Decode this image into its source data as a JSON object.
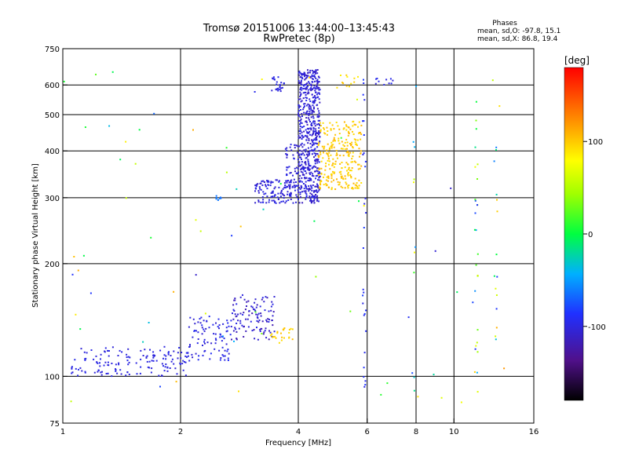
{
  "chart_data": {
    "type": "scatter",
    "title": "Tromsø 20151006 13:44:00–13:45:43",
    "subtitle": "RwPretec (8p)",
    "phases_header": "Phases",
    "phase_stats": [
      "mean, sd,O:  -97.8, 15.1",
      "mean, sd,X:  86.8, 19.4"
    ],
    "xlabel": "Frequency [MHz]",
    "ylabel": "Stationary phase Virtual Height [km]",
    "xscale": "log",
    "yscale": "log",
    "xlim": [
      1,
      16
    ],
    "ylim": [
      75,
      750
    ],
    "x_ticks": [
      1,
      2,
      4,
      6,
      8,
      10,
      16
    ],
    "x_tick_labels": [
      "1",
      "2",
      "4",
      "6",
      "8",
      "10",
      "16"
    ],
    "y_ticks": [
      75,
      100,
      200,
      300,
      400,
      500,
      600,
      750
    ],
    "y_tick_labels": [
      "75",
      "100",
      "200",
      "300",
      "400",
      "500",
      "600",
      "750"
    ],
    "grid": true,
    "colorbar": {
      "label": "[deg]",
      "range": [
        -180,
        180
      ],
      "ticks": [
        -100,
        0,
        100
      ],
      "tick_labels": [
        "-100",
        "0",
        "100"
      ]
    },
    "clusters": [
      {
        "x": [
          1.05,
          2.1
        ],
        "y": [
          100,
          120
        ],
        "c": [
          -105,
          -95
        ],
        "n": 150
      },
      {
        "x": [
          2.1,
          2.7
        ],
        "y": [
          110,
          145
        ],
        "c": [
          -110,
          -90
        ],
        "n": 90
      },
      {
        "x": [
          2.7,
          3.5
        ],
        "y": [
          125,
          165
        ],
        "c": [
          -120,
          -95
        ],
        "n": 110
      },
      {
        "x": [
          3.4,
          3.9
        ],
        "y": [
          122,
          135
        ],
        "c": [
          90,
          105
        ],
        "n": 25
      },
      {
        "x": [
          3.1,
          4.0
        ],
        "y": [
          290,
          335
        ],
        "c": [
          -110,
          -95
        ],
        "n": 130
      },
      {
        "x": [
          3.7,
          4.0
        ],
        "y": [
          320,
          420
        ],
        "c": [
          -110,
          -95
        ],
        "n": 50
      },
      {
        "x": [
          4.0,
          4.55
        ],
        "y": [
          290,
          660
        ],
        "c": [
          -115,
          -95
        ],
        "n": 600
      },
      {
        "x": [
          3.4,
          3.7
        ],
        "y": [
          570,
          630
        ],
        "c": [
          -105,
          -95
        ],
        "n": 25
      },
      {
        "x": [
          4.5,
          5.8
        ],
        "y": [
          315,
          480
        ],
        "c": [
          90,
          110
        ],
        "n": 260
      },
      {
        "x": [
          5.0,
          5.8
        ],
        "y": [
          590,
          640
        ],
        "c": [
          80,
          105
        ],
        "n": 12
      },
      {
        "x": [
          6.3,
          7.0
        ],
        "y": [
          600,
          630
        ],
        "c": [
          -105,
          -90
        ],
        "n": 10
      },
      {
        "x": [
          2.45,
          2.55
        ],
        "y": [
          295,
          305
        ],
        "c": [
          -70,
          -55
        ],
        "n": 8
      }
    ],
    "columns": [
      {
        "x": 5.9,
        "y": [
          80,
          640
        ],
        "c": [
          -100,
          -80
        ],
        "n": 30
      },
      {
        "x": 7.9,
        "y": [
          90,
          500
        ],
        "c": [
          -100,
          80
        ],
        "n": 10
      },
      {
        "x": 11.4,
        "y": [
          90,
          620
        ],
        "c": [
          -100,
          100
        ],
        "n": 25
      },
      {
        "x": 12.8,
        "y": [
          120,
          460
        ],
        "c": [
          -100,
          130
        ],
        "n": 15
      }
    ],
    "sparse": {
      "x": [
        1.0,
        13.5
      ],
      "y": [
        78,
        680
      ],
      "c": [
        -110,
        120
      ],
      "n": 70
    }
  }
}
